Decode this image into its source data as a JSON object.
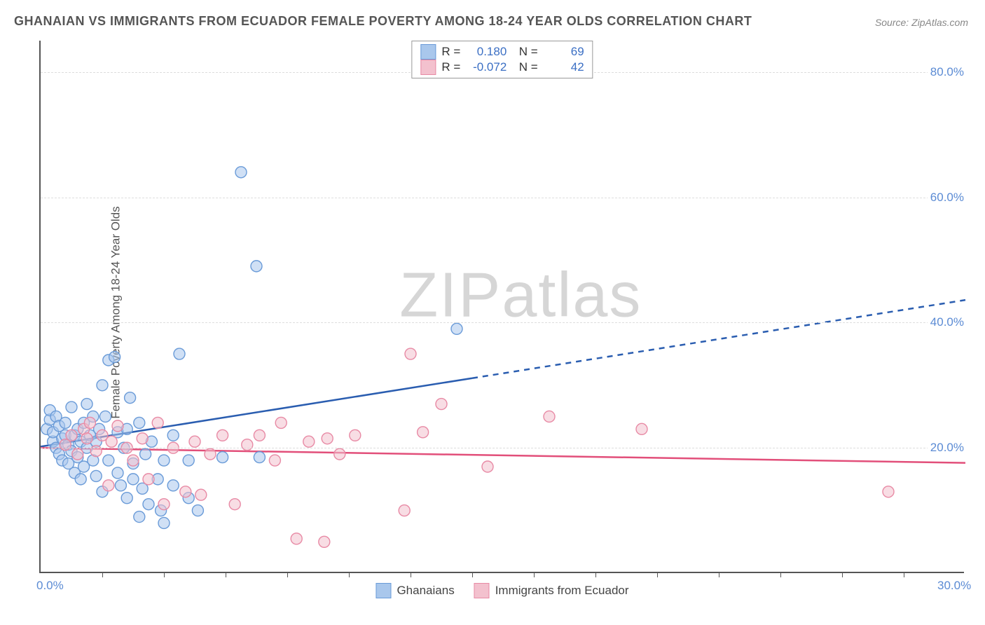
{
  "title": "GHANAIAN VS IMMIGRANTS FROM ECUADOR FEMALE POVERTY AMONG 18-24 YEAR OLDS CORRELATION CHART",
  "source": "Source: ZipAtlas.com",
  "watermark_zip": "ZIP",
  "watermark_atlas": "atlas",
  "y_axis_label": "Female Poverty Among 18-24 Year Olds",
  "chart": {
    "type": "scatter",
    "background_color": "#ffffff",
    "grid_color": "#dddddd",
    "axis_color": "#555555",
    "tick_label_color": "#5b8bd4",
    "tick_fontsize": 17,
    "title_fontsize": 18,
    "xlim": [
      0,
      30
    ],
    "ylim": [
      0,
      85
    ],
    "x_ticks": [
      0,
      30
    ],
    "x_tick_labels": [
      "0.0%",
      "30.0%"
    ],
    "x_minor_ticks": [
      2,
      4,
      6,
      8,
      10,
      12,
      14,
      16,
      18,
      20,
      22,
      24,
      26,
      28
    ],
    "y_ticks": [
      20,
      40,
      60,
      80
    ],
    "y_tick_labels": [
      "20.0%",
      "40.0%",
      "60.0%",
      "80.0%"
    ],
    "marker_radius": 8,
    "marker_opacity": 0.55,
    "series": [
      {
        "name": "Ghanaians",
        "color_fill": "#a9c7ec",
        "color_stroke": "#6a9bd8",
        "R": "0.180",
        "N": "69",
        "trend": {
          "intercept": 20.2,
          "slope": 0.78,
          "color": "#2a5db0",
          "width": 2.5,
          "solid_until_x": 14,
          "dash_after": true
        },
        "points": [
          [
            0.2,
            23
          ],
          [
            0.3,
            24.5
          ],
          [
            0.3,
            26
          ],
          [
            0.4,
            21
          ],
          [
            0.4,
            22.5
          ],
          [
            0.5,
            20
          ],
          [
            0.5,
            25
          ],
          [
            0.6,
            19
          ],
          [
            0.6,
            23.5
          ],
          [
            0.7,
            18
          ],
          [
            0.7,
            21.5
          ],
          [
            0.8,
            22
          ],
          [
            0.8,
            24
          ],
          [
            0.9,
            20.5
          ],
          [
            0.9,
            17.5
          ],
          [
            1.0,
            26.5
          ],
          [
            1.0,
            19.5
          ],
          [
            1.1,
            22
          ],
          [
            1.1,
            16
          ],
          [
            1.2,
            23
          ],
          [
            1.2,
            18.5
          ],
          [
            1.3,
            21
          ],
          [
            1.3,
            15
          ],
          [
            1.4,
            24
          ],
          [
            1.4,
            17
          ],
          [
            1.5,
            20
          ],
          [
            1.5,
            27
          ],
          [
            1.6,
            22
          ],
          [
            1.7,
            18
          ],
          [
            1.7,
            25
          ],
          [
            1.8,
            15.5
          ],
          [
            1.8,
            21
          ],
          [
            1.9,
            23
          ],
          [
            2.0,
            13
          ],
          [
            2.0,
            30
          ],
          [
            2.1,
            25
          ],
          [
            2.2,
            18
          ],
          [
            2.2,
            34
          ],
          [
            2.4,
            34.5
          ],
          [
            2.5,
            16
          ],
          [
            2.5,
            22.5
          ],
          [
            2.6,
            14
          ],
          [
            2.7,
            20
          ],
          [
            2.8,
            12
          ],
          [
            2.8,
            23
          ],
          [
            2.9,
            28
          ],
          [
            3.0,
            15
          ],
          [
            3.0,
            17.5
          ],
          [
            3.2,
            9
          ],
          [
            3.2,
            24
          ],
          [
            3.3,
            13.5
          ],
          [
            3.4,
            19
          ],
          [
            3.5,
            11
          ],
          [
            3.6,
            21
          ],
          [
            3.8,
            15
          ],
          [
            3.9,
            10
          ],
          [
            4.0,
            18
          ],
          [
            4.0,
            8
          ],
          [
            4.3,
            14
          ],
          [
            4.3,
            22
          ],
          [
            4.5,
            35
          ],
          [
            4.8,
            12
          ],
          [
            4.8,
            18
          ],
          [
            5.1,
            10
          ],
          [
            5.9,
            18.5
          ],
          [
            6.5,
            64
          ],
          [
            7.0,
            49
          ],
          [
            7.1,
            18.5
          ],
          [
            13.5,
            39
          ]
        ]
      },
      {
        "name": "Immigrants from Ecuador",
        "color_fill": "#f3c1ce",
        "color_stroke": "#e88aa5",
        "R": "-0.072",
        "N": "42",
        "trend": {
          "intercept": 20.0,
          "slope": -0.08,
          "color": "#e24f7a",
          "width": 2.5,
          "solid_until_x": 30,
          "dash_after": false
        },
        "points": [
          [
            0.8,
            20.5
          ],
          [
            1.0,
            22
          ],
          [
            1.2,
            19
          ],
          [
            1.4,
            23
          ],
          [
            1.5,
            21.5
          ],
          [
            1.6,
            24
          ],
          [
            1.8,
            19.5
          ],
          [
            2.0,
            22
          ],
          [
            2.2,
            14
          ],
          [
            2.3,
            21
          ],
          [
            2.5,
            23.5
          ],
          [
            2.8,
            20
          ],
          [
            3.0,
            18
          ],
          [
            3.3,
            21.5
          ],
          [
            3.5,
            15
          ],
          [
            3.8,
            24
          ],
          [
            4.0,
            11
          ],
          [
            4.3,
            20
          ],
          [
            4.7,
            13
          ],
          [
            5.0,
            21
          ],
          [
            5.2,
            12.5
          ],
          [
            5.5,
            19
          ],
          [
            5.9,
            22
          ],
          [
            6.3,
            11
          ],
          [
            6.7,
            20.5
          ],
          [
            7.1,
            22
          ],
          [
            7.6,
            18
          ],
          [
            7.8,
            24
          ],
          [
            8.3,
            5.5
          ],
          [
            8.7,
            21
          ],
          [
            9.2,
            5
          ],
          [
            9.3,
            21.5
          ],
          [
            9.7,
            19
          ],
          [
            10.2,
            22
          ],
          [
            11.8,
            10
          ],
          [
            12.0,
            35
          ],
          [
            12.4,
            22.5
          ],
          [
            13.0,
            27
          ],
          [
            14.5,
            17
          ],
          [
            16.5,
            25
          ],
          [
            19.5,
            23
          ],
          [
            27.5,
            13
          ]
        ]
      }
    ],
    "legend_bottom": [
      {
        "label": "Ghanaians",
        "fill": "#a9c7ec",
        "stroke": "#6a9bd8"
      },
      {
        "label": "Immigrants from Ecuador",
        "fill": "#f3c1ce",
        "stroke": "#e88aa5"
      }
    ]
  }
}
